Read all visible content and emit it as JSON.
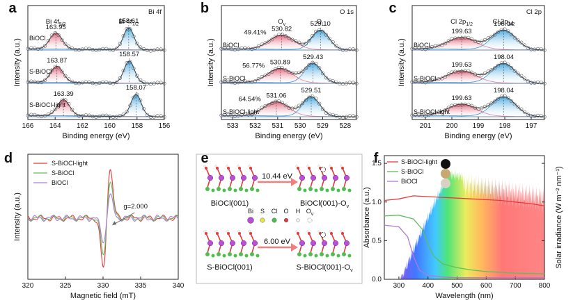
{
  "colors": {
    "red": "#e0506a",
    "blue": "#3fa6e0",
    "green": "#3cb44b",
    "purple": "#9b59c8",
    "redline": "#e83a3a",
    "greenline": "#5cbf5c",
    "purpleline": "#b07ad6",
    "bi": "#b84fd6",
    "s": "#e8e83a",
    "cl": "#4cc04c",
    "o": "#e03a3a",
    "h": "#ffffff",
    "ov": "#ffffff"
  },
  "chart_data": [
    {
      "id": "a",
      "type": "line",
      "panel_label": "a",
      "title": "Bi 4f",
      "xlabel": "Binding energy (eV)",
      "ylabel": "Intensity (a.u.)",
      "xlim": [
        166,
        156
      ],
      "xticks": [
        "166",
        "164",
        "162",
        "160",
        "158",
        "156"
      ],
      "peak_labels": [
        {
          "text": "Bi 4f",
          "sub": "5/2"
        },
        {
          "text": "Bi 4f",
          "sub": "7/2"
        }
      ],
      "series": [
        {
          "name": "BiOCl",
          "peaks": [
            163.95,
            158.61
          ]
        },
        {
          "name": "S-BiOCl",
          "peaks": [
            163.87,
            158.57
          ]
        },
        {
          "name": "S-BiOCl-light",
          "peaks": [
            163.39,
            158.07
          ]
        }
      ]
    },
    {
      "id": "b",
      "type": "line",
      "panel_label": "b",
      "title": "O 1s",
      "xlabel": "Binding energy (eV)",
      "ylabel": "Intensity (a.u.)",
      "xlim": [
        533.5,
        527.5
      ],
      "xticks": [
        "533",
        "532",
        "531",
        "530",
        "529",
        "528"
      ],
      "peak_labels": [
        {
          "text": "O",
          "sub": "v"
        },
        {
          "text": "O",
          "sub": "L"
        }
      ],
      "series": [
        {
          "name": "BiOCl",
          "peaks": [
            530.82,
            529.1
          ],
          "ov_percent": "49.41%"
        },
        {
          "name": "S-BiOCl",
          "peaks": [
            530.89,
            529.43
          ],
          "ov_percent": "56.77%"
        },
        {
          "name": "S-BiOCl-light",
          "peaks": [
            531.06,
            529.51
          ],
          "ov_percent": "64.54%"
        }
      ]
    },
    {
      "id": "c",
      "type": "line",
      "panel_label": "c",
      "title": "Cl 2p",
      "xlabel": "Binding energy (eV)",
      "ylabel": "Intensity (a.u.)",
      "xlim": [
        201.5,
        196.5
      ],
      "xticks": [
        "201",
        "200",
        "199",
        "198",
        "197"
      ],
      "peak_labels": [
        {
          "text": "Cl 2p",
          "sub": "1/2"
        },
        {
          "text": "Cl 2p",
          "sub": "3/2"
        }
      ],
      "series": [
        {
          "name": "BiOCl",
          "peaks": [
            199.63,
            198.04
          ]
        },
        {
          "name": "S-BiOCl",
          "peaks": [
            199.63,
            198.04
          ]
        },
        {
          "name": "S-BiOCl-light",
          "peaks": [
            199.63,
            198.04
          ]
        }
      ]
    },
    {
      "id": "d",
      "type": "line",
      "panel_label": "d",
      "title": "",
      "xlabel": "Magnetic field (mT)",
      "ylabel": "Intensity (a.u.)",
      "xlim": [
        320,
        340
      ],
      "xticks": [
        "320",
        "325",
        "330",
        "335",
        "340"
      ],
      "annotation": "g=2.000",
      "center": 330.5,
      "series": [
        {
          "name": "S-BiOCl-light",
          "amplitude": 1.0
        },
        {
          "name": "S-BiOCl",
          "amplitude": 0.72
        },
        {
          "name": "BiOCl",
          "amplitude": 0.45
        }
      ]
    },
    {
      "id": "f",
      "type": "line",
      "panel_label": "f",
      "title": "",
      "xlabel": "Wavelength (nm)",
      "ylabel": "Absorbance (a.u.)",
      "y2label": "Solar irradiance (W m⁻² nm⁻¹)",
      "xlim": [
        250,
        800
      ],
      "xticks": [
        "300",
        "400",
        "500",
        "600",
        "700",
        "800"
      ],
      "ylim": [
        0,
        1.6
      ],
      "yticks": [
        "0.0",
        "0.5",
        "1.0",
        "1.5"
      ],
      "y2ticks": [
        "0.0",
        "0.5",
        "1.0",
        "1.5"
      ],
      "series": [
        {
          "name": "S-BiOCl-light",
          "x": [
            250,
            300,
            350,
            400,
            450,
            500,
            550,
            600,
            650,
            700,
            750,
            800
          ],
          "y": [
            1.02,
            1.04,
            1.08,
            1.07,
            1.06,
            1.05,
            1.04,
            1.03,
            1.02,
            1.0,
            0.98,
            0.95
          ]
        },
        {
          "name": "S-BiOCl",
          "x": [
            250,
            300,
            350,
            380,
            400,
            420,
            450,
            500,
            550,
            600,
            700,
            800
          ],
          "y": [
            0.82,
            0.83,
            0.78,
            0.65,
            0.45,
            0.3,
            0.2,
            0.15,
            0.12,
            0.1,
            0.08,
            0.07
          ]
        },
        {
          "name": "BiOCl",
          "x": [
            250,
            300,
            330,
            350,
            370,
            400,
            450,
            500,
            600,
            800
          ],
          "y": [
            0.7,
            0.68,
            0.55,
            0.3,
            0.12,
            0.05,
            0.03,
            0.02,
            0.02,
            0.02
          ]
        }
      ]
    }
  ],
  "panel_e": {
    "label": "e",
    "top_left": "BiOCl(001)",
    "top_right": "BiOCl(001)-O",
    "top_right_sub": "v",
    "top_energy": "10.44 eV",
    "bottom_left": "S-BiOCl(001)",
    "bottom_right": "S-BiOCl(001)-O",
    "bottom_right_sub": "v",
    "bottom_energy": "6.00 eV",
    "legend": [
      "Bi",
      "S",
      "Cl",
      "O",
      "H",
      "O"
    ],
    "legend_ov_sub": "v"
  }
}
